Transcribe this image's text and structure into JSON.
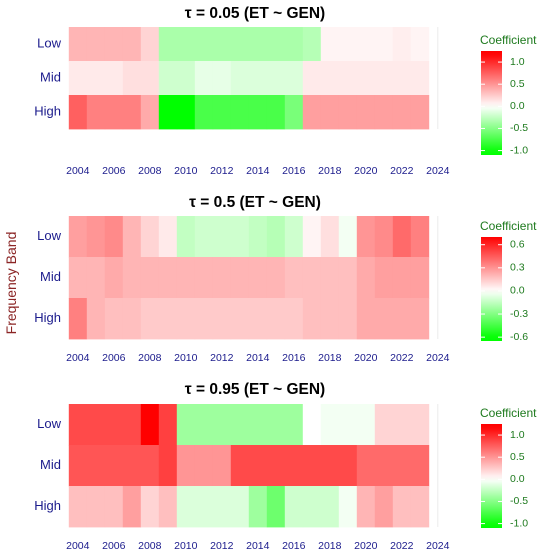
{
  "y_axis_label": "Frequency Band",
  "chart_data": [
    {
      "type": "heatmap",
      "title": "τ = 0.05  (ET ~ GEN)",
      "x": [
        2004,
        2005,
        2006,
        2007,
        2008,
        2009,
        2010,
        2011,
        2012,
        2013,
        2014,
        2015,
        2016,
        2017,
        2018,
        2019,
        2020,
        2021,
        2022,
        2023
      ],
      "x_ticks": [
        2004,
        2006,
        2008,
        2010,
        2012,
        2014,
        2016,
        2018,
        2020,
        2022,
        2024
      ],
      "rows": [
        "Low",
        "Mid",
        "High"
      ],
      "values": [
        [
          0.35,
          0.35,
          0.35,
          0.35,
          0.2,
          -0.35,
          -0.35,
          -0.35,
          -0.35,
          -0.35,
          -0.35,
          -0.35,
          -0.35,
          -0.3,
          0.05,
          0.05,
          0.05,
          0.05,
          0.08,
          0.05
        ],
        [
          0.1,
          0.1,
          0.1,
          0.15,
          0.15,
          -0.2,
          -0.2,
          -0.1,
          -0.1,
          -0.15,
          -0.15,
          -0.15,
          -0.15,
          0.1,
          0.1,
          0.1,
          0.1,
          0.1,
          0.1,
          0.1
        ],
        [
          0.75,
          0.6,
          0.6,
          0.6,
          0.4,
          -1.05,
          -1.05,
          -0.75,
          -0.75,
          -0.75,
          -0.75,
          -0.75,
          -0.55,
          0.45,
          0.45,
          0.45,
          0.45,
          0.45,
          0.45,
          0.45
        ]
      ],
      "legend": {
        "title": "Coefficient",
        "ticks": [
          1.0,
          0.5,
          0.0,
          -0.5,
          -1.0
        ],
        "labels": [
          "1.0",
          "0.5",
          "0.0",
          "-0.5",
          "-1.0"
        ],
        "range": [
          -1.1,
          1.25
        ]
      }
    },
    {
      "type": "heatmap",
      "title": "τ = 0.5  (ET ~ GEN)",
      "x": [
        2004,
        2005,
        2006,
        2007,
        2008,
        2009,
        2010,
        2011,
        2012,
        2013,
        2014,
        2015,
        2016,
        2017,
        2018,
        2019,
        2020,
        2021,
        2022,
        2023
      ],
      "x_ticks": [
        2004,
        2006,
        2008,
        2010,
        2012,
        2014,
        2016,
        2018,
        2020,
        2022,
        2024
      ],
      "rows": [
        "Low",
        "Mid",
        "High"
      ],
      "values": [
        [
          0.45,
          0.5,
          0.55,
          0.35,
          0.2,
          0.1,
          -0.25,
          -0.2,
          -0.2,
          -0.2,
          -0.25,
          -0.3,
          -0.2,
          0.05,
          0.15,
          -0.05,
          0.5,
          0.55,
          0.7,
          0.6
        ],
        [
          0.35,
          0.35,
          0.4,
          0.35,
          0.35,
          0.35,
          0.35,
          0.35,
          0.35,
          0.35,
          0.35,
          0.35,
          0.3,
          0.3,
          0.3,
          0.3,
          0.4,
          0.45,
          0.45,
          0.45
        ],
        [
          0.6,
          0.35,
          0.3,
          0.3,
          0.25,
          0.25,
          0.25,
          0.25,
          0.25,
          0.25,
          0.25,
          0.25,
          0.25,
          0.3,
          0.3,
          0.3,
          0.4,
          0.4,
          0.4,
          0.4
        ]
      ],
      "legend": {
        "title": "Coefficient",
        "ticks": [
          0.6,
          0.3,
          0.0,
          -0.3,
          -0.6
        ],
        "labels": [
          "0.6",
          "0.3",
          "0.0",
          "-0.3",
          "-0.6"
        ],
        "range": [
          -0.65,
          0.7
        ]
      }
    },
    {
      "type": "heatmap",
      "title": "τ = 0.95  (ET ~ GEN)",
      "x": [
        2004,
        2005,
        2006,
        2007,
        2008,
        2009,
        2010,
        2011,
        2012,
        2013,
        2014,
        2015,
        2016,
        2017,
        2018,
        2019,
        2020,
        2021,
        2022,
        2023
      ],
      "x_ticks": [
        2004,
        2006,
        2008,
        2010,
        2012,
        2014,
        2016,
        2018,
        2020,
        2022,
        2024
      ],
      "rows": [
        "Low",
        "Mid",
        "High"
      ],
      "values": [
        [
          0.85,
          0.85,
          0.85,
          0.85,
          1.2,
          0.9,
          -0.4,
          -0.4,
          -0.4,
          -0.4,
          -0.4,
          -0.4,
          -0.4,
          0.0,
          -0.05,
          -0.05,
          -0.05,
          0.2,
          0.2,
          0.2
        ],
        [
          0.8,
          0.8,
          0.8,
          0.8,
          0.8,
          0.9,
          0.5,
          0.5,
          0.5,
          0.85,
          0.85,
          0.85,
          0.85,
          0.85,
          0.85,
          0.85,
          0.7,
          0.7,
          0.7,
          0.7
        ],
        [
          0.3,
          0.3,
          0.3,
          0.45,
          0.2,
          0.3,
          -0.15,
          -0.15,
          -0.15,
          -0.15,
          -0.4,
          -0.6,
          -0.2,
          -0.2,
          -0.2,
          -0.05,
          0.35,
          0.45,
          0.3,
          0.3
        ]
      ],
      "legend": {
        "title": "Coefficient",
        "ticks": [
          1.0,
          0.5,
          0.0,
          -0.5,
          -1.0
        ],
        "labels": [
          "1.0",
          "0.5",
          "0.0",
          "-0.5",
          "-1.0"
        ],
        "range": [
          -1.1,
          1.25
        ]
      }
    }
  ]
}
